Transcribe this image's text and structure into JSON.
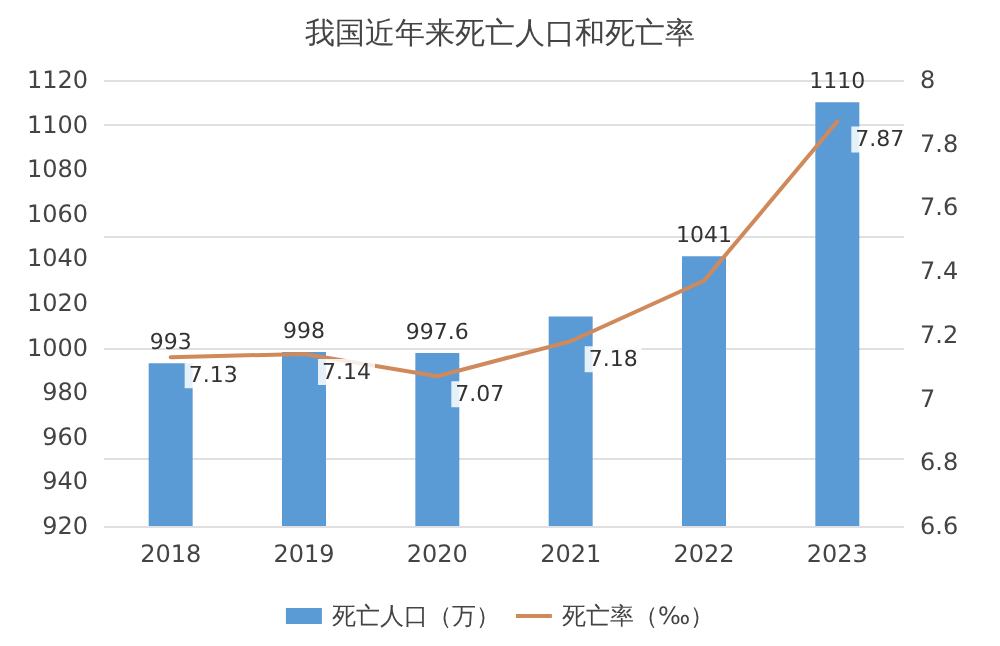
{
  "chart_data": {
    "type": "bar",
    "title": "我国近年来死亡人口和死亡率",
    "categories": [
      "2018",
      "2019",
      "2020",
      "2021",
      "2022",
      "2023"
    ],
    "series": [
      {
        "name": "死亡人口（万）",
        "color": "#5b9bd5",
        "values": [
          993,
          998,
          997.6,
          1014,
          1041,
          1110
        ],
        "value_labels": [
          "993",
          "998",
          "997.6",
          null,
          "1041",
          "1110"
        ]
      },
      {
        "name": "死亡率（‰）",
        "type": "line",
        "axis": "y2",
        "color": "#d0895a",
        "values": [
          7.13,
          7.14,
          7.07,
          7.18,
          7.37,
          7.87
        ],
        "value_labels": [
          "7.13",
          "7.14",
          "7.07",
          "7.18",
          null,
          "7.87"
        ]
      }
    ],
    "ylim": [
      920,
      1120
    ],
    "yticks": [
      920,
      940,
      960,
      980,
      1000,
      1020,
      1040,
      1060,
      1080,
      1100,
      1120
    ],
    "y2lim": [
      6.6,
      8
    ],
    "y2ticks": [
      6.6,
      6.8,
      7,
      7.2,
      7.4,
      7.6,
      7.8,
      8
    ],
    "grid": "y",
    "legend": "bottom",
    "marker": "none",
    "line_style": "solid"
  }
}
